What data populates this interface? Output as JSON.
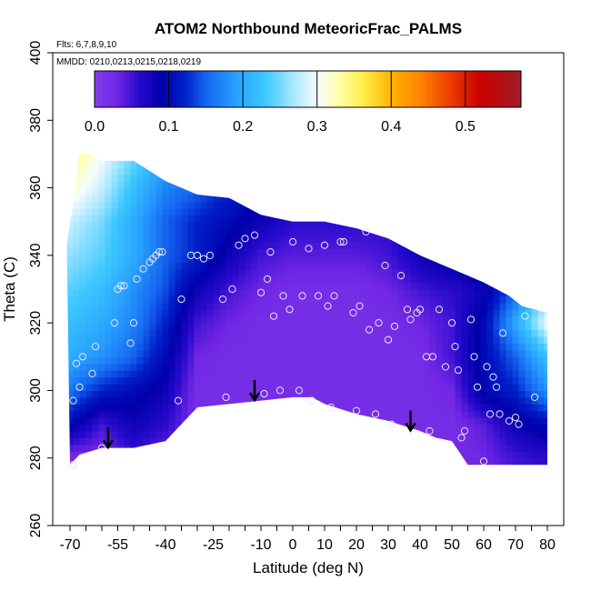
{
  "chart_data": {
    "type": "heatmap",
    "title": "ATOM2 Northbound MeteoricFrac_PALMS",
    "annotations": [
      "Flts: 6,7,8,9,10",
      "MMDD: 0210,0213,0215,0218,0219"
    ],
    "xlabel": "Latitude (deg N)",
    "ylabel": "Theta (C)",
    "xlim": [
      -70,
      80
    ],
    "ylim": [
      260,
      400
    ],
    "x_ticks": [
      "-70",
      "-55",
      "-40",
      "-25",
      "-10",
      "0",
      "10",
      "20",
      "30",
      "40",
      "50",
      "60",
      "70",
      "80"
    ],
    "x_tick_values": [
      -70,
      -55,
      -40,
      -25,
      -10,
      0,
      10,
      20,
      30,
      40,
      50,
      60,
      70,
      80
    ],
    "y_ticks": [
      "260",
      "280",
      "300",
      "320",
      "340",
      "360",
      "380",
      "400"
    ],
    "y_tick_values": [
      260,
      280,
      300,
      320,
      340,
      360,
      380,
      400
    ],
    "colorbar": {
      "ticks": [
        "0.0",
        "0.1",
        "0.2",
        "0.3",
        "0.4",
        "0.5"
      ],
      "tick_values": [
        0,
        0.1,
        0.2,
        0.3,
        0.4,
        0.5
      ],
      "range": [
        0,
        0.575
      ]
    },
    "field": {
      "lat": [
        -70,
        -60,
        -50,
        -40,
        -30,
        -20,
        -10,
        0,
        10,
        20,
        30,
        40,
        50,
        60,
        70,
        80
      ],
      "theta": [
        280,
        290,
        300,
        310,
        320,
        330,
        340,
        350,
        360,
        370
      ],
      "values": [
        [
          0.02,
          0.02,
          0.05,
          0.03,
          0.02,
          0.02,
          0.02,
          0.02,
          0.02,
          0.02,
          0.02,
          0.02,
          0.02,
          0.03,
          0.05,
          0.06
        ],
        [
          0.1,
          0.05,
          0.08,
          0.06,
          0.02,
          0.02,
          0.02,
          0.02,
          0.02,
          0.02,
          0.02,
          0.02,
          0.02,
          0.04,
          0.08,
          0.1
        ],
        [
          0.16,
          0.12,
          0.1,
          0.08,
          0.02,
          0.02,
          0.02,
          0.02,
          0.02,
          0.02,
          0.02,
          0.02,
          0.03,
          0.1,
          0.12,
          0.18
        ],
        [
          0.2,
          0.18,
          0.15,
          0.1,
          0.03,
          0.02,
          0.02,
          0.02,
          0.02,
          0.02,
          0.02,
          0.02,
          0.05,
          0.1,
          0.15,
          0.22
        ],
        [
          0.22,
          0.2,
          0.17,
          0.12,
          0.05,
          0.03,
          0.02,
          0.02,
          0.02,
          0.02,
          0.02,
          0.03,
          0.05,
          0.1,
          0.2,
          0.3
        ],
        [
          0.24,
          0.22,
          0.18,
          0.14,
          0.08,
          0.05,
          0.03,
          0.02,
          0.02,
          0.02,
          0.03,
          0.05,
          0.06,
          0.08,
          0.15,
          0.25
        ],
        [
          0.26,
          0.24,
          0.2,
          0.15,
          0.12,
          0.08,
          0.05,
          0.04,
          0.04,
          0.04,
          0.05,
          0.08,
          0.1,
          0.12,
          0.14,
          0.15
        ],
        [
          0.28,
          0.25,
          0.2,
          0.15,
          0.12,
          0.1,
          0.08,
          0.06,
          0.06,
          0.06,
          0.06,
          0.08,
          0.1,
          0.12,
          0.14,
          0.15
        ],
        [
          0.32,
          0.28,
          0.22,
          0.17,
          0.15,
          0.12,
          0.1,
          0.08,
          0.07,
          0.07,
          0.07,
          0.08,
          0.1,
          0.12,
          0.14,
          0.15
        ],
        [
          0.35,
          0.3,
          0.25,
          0.2,
          0.18,
          0.15,
          0.12,
          0.1,
          0.08,
          0.08,
          0.08,
          0.09,
          0.1,
          0.12,
          0.14,
          0.15
        ]
      ]
    },
    "coverage": {
      "top": [
        [
          -71,
          343
        ],
        [
          -68,
          362
        ],
        [
          -67,
          370
        ],
        [
          -64,
          370
        ],
        [
          -60,
          368
        ],
        [
          -50,
          368
        ],
        [
          -45,
          365
        ],
        [
          -40,
          362
        ],
        [
          -30,
          358
        ],
        [
          -20,
          357
        ],
        [
          -10,
          352
        ],
        [
          0,
          350
        ],
        [
          10,
          350
        ],
        [
          20,
          348
        ],
        [
          30,
          345
        ],
        [
          40,
          340
        ],
        [
          50,
          336
        ],
        [
          60,
          332
        ],
        [
          68,
          328
        ],
        [
          72,
          325
        ],
        [
          80,
          323
        ]
      ],
      "bottom": [
        [
          -70,
          278
        ],
        [
          -67,
          281
        ],
        [
          -60,
          283
        ],
        [
          -50,
          283
        ],
        [
          -40,
          285
        ],
        [
          -30,
          295
        ],
        [
          -20,
          296
        ],
        [
          -10,
          297
        ],
        [
          0,
          298
        ],
        [
          6,
          298
        ],
        [
          10,
          296
        ],
        [
          20,
          293
        ],
        [
          30,
          291
        ],
        [
          40,
          288
        ],
        [
          45,
          286
        ],
        [
          50,
          285
        ],
        [
          55,
          278
        ],
        [
          80,
          278
        ]
      ]
    },
    "points": [
      [
        -69,
        278
      ],
      [
        -69,
        297
      ],
      [
        -68,
        308
      ],
      [
        -67,
        301
      ],
      [
        -66,
        310
      ],
      [
        -63,
        305
      ],
      [
        -62,
        313
      ],
      [
        -60,
        283
      ],
      [
        -56,
        320
      ],
      [
        -55,
        330
      ],
      [
        -54,
        331
      ],
      [
        -53,
        331
      ],
      [
        -51,
        314
      ],
      [
        -50,
        320
      ],
      [
        -49,
        333
      ],
      [
        -47,
        336
      ],
      [
        -45,
        338
      ],
      [
        -44,
        339
      ],
      [
        -43,
        340
      ],
      [
        -42,
        341
      ],
      [
        -41,
        341
      ],
      [
        -36,
        297
      ],
      [
        -35,
        327
      ],
      [
        -32,
        340
      ],
      [
        -30,
        340
      ],
      [
        -28,
        339
      ],
      [
        -26,
        340
      ],
      [
        -22,
        327
      ],
      [
        -21,
        298
      ],
      [
        -19,
        330
      ],
      [
        -17,
        343
      ],
      [
        -15,
        345
      ],
      [
        -12,
        346
      ],
      [
        -10,
        329
      ],
      [
        -9,
        299
      ],
      [
        -8,
        333
      ],
      [
        -7,
        341
      ],
      [
        -6,
        322
      ],
      [
        -4,
        300
      ],
      [
        -3,
        328
      ],
      [
        -1,
        324
      ],
      [
        0,
        344
      ],
      [
        2,
        300
      ],
      [
        3,
        328
      ],
      [
        5,
        342
      ],
      [
        6,
        297
      ],
      [
        8,
        328
      ],
      [
        10,
        343
      ],
      [
        11,
        325
      ],
      [
        12,
        295
      ],
      [
        13,
        328
      ],
      [
        15,
        344
      ],
      [
        16,
        344
      ],
      [
        19,
        323
      ],
      [
        20,
        294
      ],
      [
        21,
        325
      ],
      [
        23,
        347
      ],
      [
        24,
        318
      ],
      [
        26,
        293
      ],
      [
        27,
        320
      ],
      [
        29,
        337
      ],
      [
        30,
        315
      ],
      [
        31,
        290
      ],
      [
        32,
        319
      ],
      [
        34,
        334
      ],
      [
        36,
        324
      ],
      [
        37,
        321
      ],
      [
        39,
        323
      ],
      [
        40,
        324
      ],
      [
        42,
        310
      ],
      [
        43,
        288
      ],
      [
        44,
        310
      ],
      [
        46,
        324
      ],
      [
        48,
        307
      ],
      [
        50,
        320
      ],
      [
        51,
        313
      ],
      [
        52,
        306
      ],
      [
        53,
        286
      ],
      [
        54,
        288
      ],
      [
        56,
        321
      ],
      [
        57,
        310
      ],
      [
        58,
        301
      ],
      [
        60,
        279
      ],
      [
        61,
        307
      ],
      [
        62,
        293
      ],
      [
        63,
        304
      ],
      [
        64,
        301
      ],
      [
        65,
        293
      ],
      [
        66,
        317
      ],
      [
        68,
        291
      ],
      [
        70,
        292
      ],
      [
        71,
        290
      ],
      [
        73,
        322
      ],
      [
        76,
        298
      ]
    ],
    "arrows": [
      [
        -58,
        288
      ],
      [
        -12,
        302
      ],
      [
        37,
        293
      ]
    ]
  }
}
